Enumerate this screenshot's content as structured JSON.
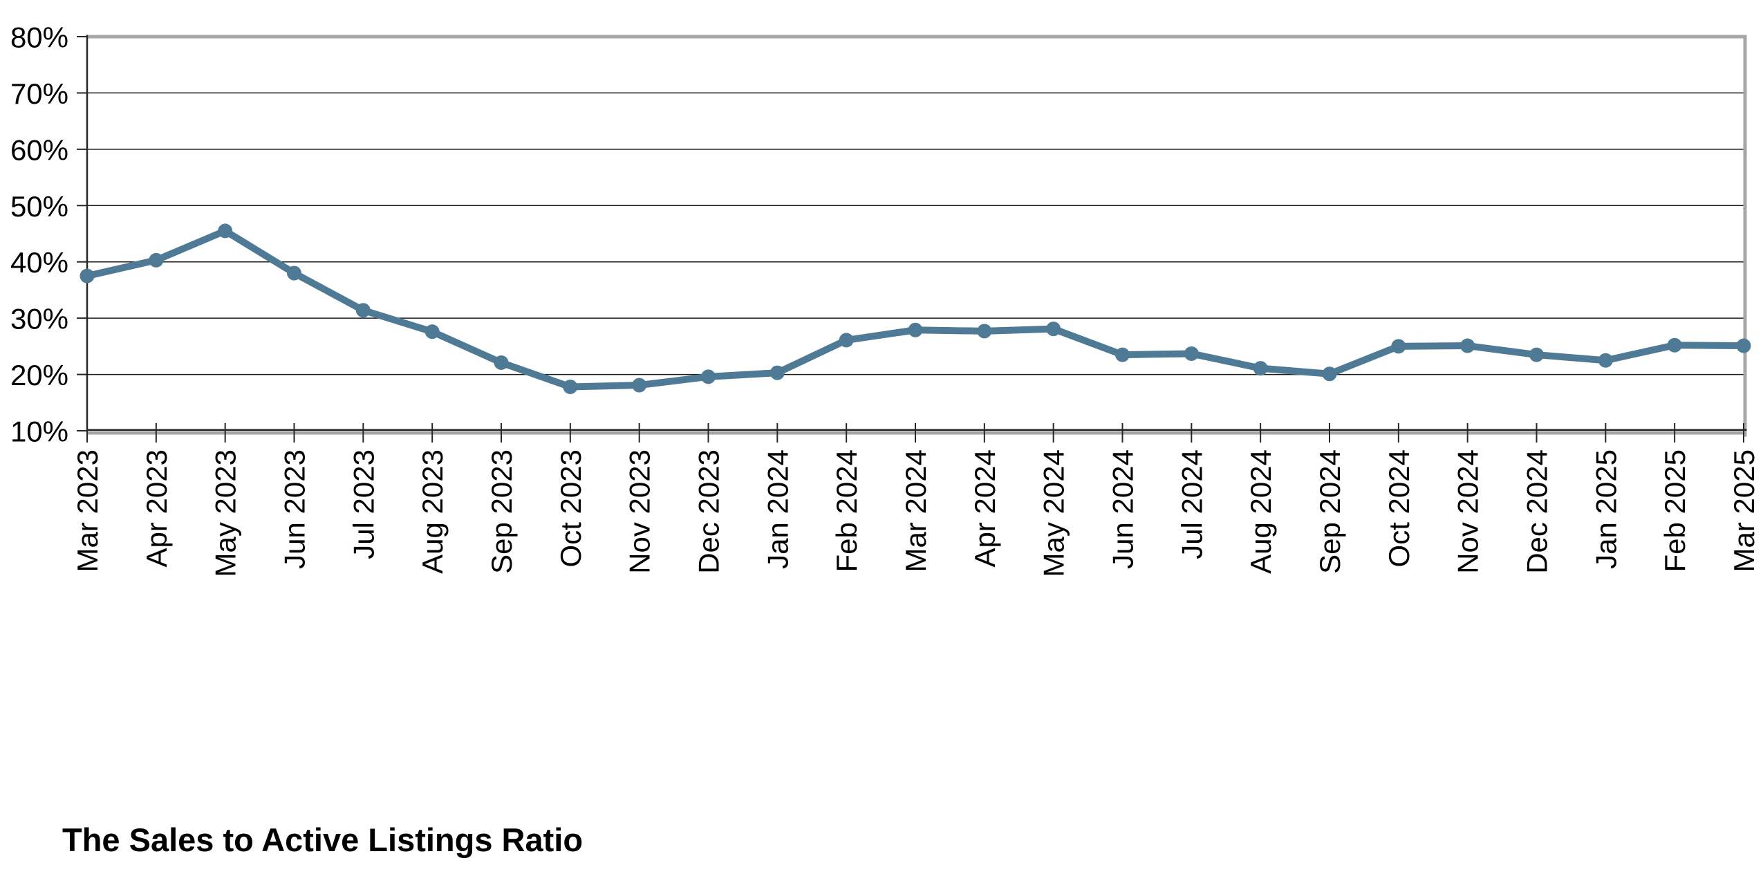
{
  "title": {
    "text": "The Sales to Active Listings Ratio"
  },
  "chart_data": {
    "type": "line",
    "title": "The Sales to Active Listings Ratio",
    "categories": [
      "Mar 2023",
      "Apr 2023",
      "May 2023",
      "Jun 2023",
      "Jul 2023",
      "Aug 2023",
      "Sep 2023",
      "Oct 2023",
      "Nov 2023",
      "Dec 2023",
      "Jan 2024",
      "Feb 2024",
      "Mar 2024",
      "Apr 2024",
      "May 2024",
      "Jun 2024",
      "Jul 2024",
      "Aug 2024",
      "Sep 2024",
      "Oct 2024",
      "Nov 2024",
      "Dec 2024",
      "Jan 2025",
      "Feb 2025",
      "Mar 2025"
    ],
    "series": [
      {
        "name": "Sales to Active Listings Ratio",
        "values": [
          37.5,
          40.3,
          45.5,
          38.0,
          31.4,
          27.6,
          22.1,
          17.8,
          18.1,
          19.6,
          20.3,
          26.1,
          27.9,
          27.7,
          28.1,
          23.5,
          23.7,
          21.1,
          20.1,
          25.0,
          25.1,
          23.5,
          22.5,
          25.2,
          25.1
        ]
      }
    ],
    "xlabel": "",
    "ylabel": "",
    "ylim": [
      10,
      80
    ],
    "y_tick_values": [
      10,
      20,
      30,
      40,
      50,
      60,
      70,
      80
    ],
    "y_tick_labels": [
      "10%",
      "20%",
      "30%",
      "40%",
      "50%",
      "60%",
      "70%",
      "80%"
    ],
    "x_tick_rotation": -90,
    "grid": "horizontal",
    "legend": "none",
    "marker": "circle",
    "colors": {
      "line": "#4e7a96",
      "marker": "#4e7a96",
      "gridline": "#1a1a1a",
      "axis": "#262626",
      "border_gray": "#a6a6a6",
      "text": "#000000",
      "background": "#ffffff"
    }
  }
}
